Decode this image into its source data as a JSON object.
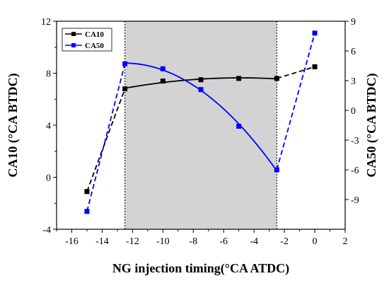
{
  "chart_data": {
    "type": "line",
    "xlabel": "NG injection timing(°CA  ATDC)",
    "ylabel_left": "CA10 (°CA BTDC)",
    "ylabel_right": "CA50 (°CA BTDC)",
    "xlim": [
      -17,
      2
    ],
    "ylim_left": [
      -4,
      12
    ],
    "ylim_right": [
      -12,
      9
    ],
    "x_ticks": [
      -16,
      -14,
      -12,
      -10,
      -8,
      -6,
      -4,
      -2,
      0,
      2
    ],
    "y_ticks_left": [
      -4,
      0,
      4,
      8,
      12
    ],
    "y_ticks_right": [
      -9,
      -6,
      -3,
      0,
      3,
      6,
      9
    ],
    "shaded_region_x": [
      -12.5,
      -2.5
    ],
    "grid": false,
    "legend_position": "top-left",
    "series": [
      {
        "name": "CA10",
        "axis": "left",
        "color": "#000000",
        "marker": "square",
        "x": [
          -15,
          -12.5,
          -10,
          -7.5,
          -5,
          -2.5,
          0
        ],
        "y": [
          -1.1,
          6.8,
          7.4,
          7.5,
          7.6,
          7.6,
          8.5
        ]
      },
      {
        "name": "CA50",
        "axis": "right",
        "color": "#0000ff",
        "marker": "square",
        "x": [
          -15,
          -12.5,
          -10,
          -7.5,
          -5,
          -2.5,
          0
        ],
        "y": [
          -10.2,
          4.7,
          4.2,
          2.1,
          -1.6,
          -6.0,
          7.8
        ]
      }
    ]
  }
}
